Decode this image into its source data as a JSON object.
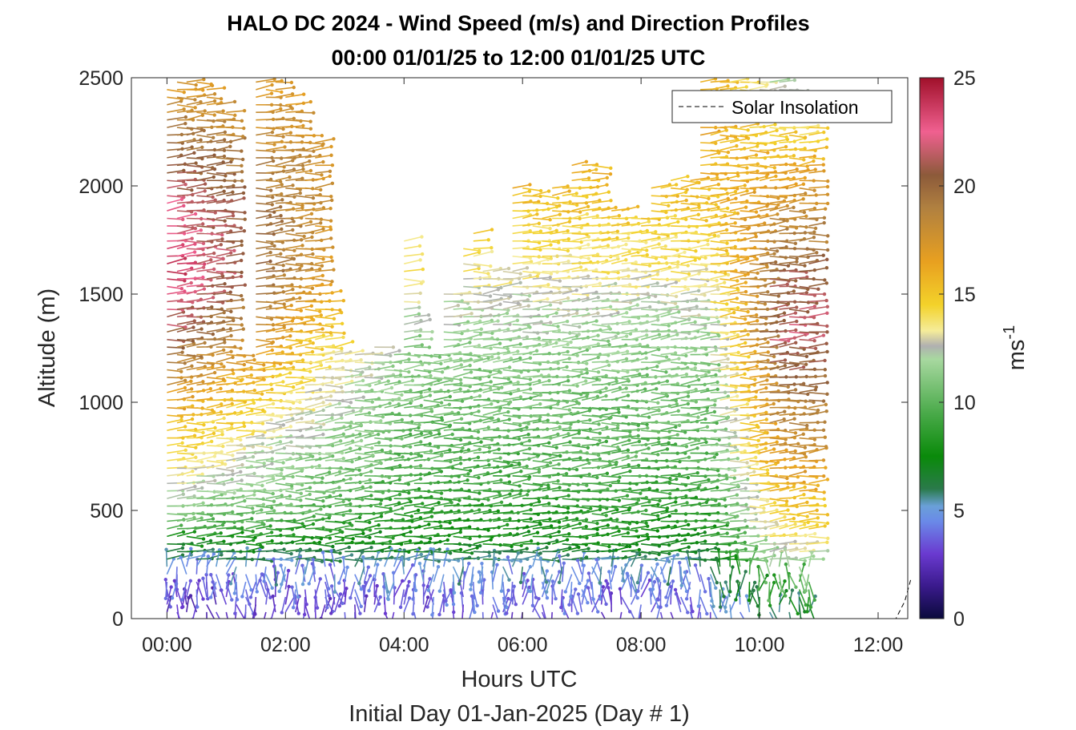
{
  "chart_data": {
    "type": "wind-barb-profile",
    "title": "HALO DC 2024 - Wind Speed (m/s) and Direction Profiles",
    "subtitle": "00:00 01/01/25 to 12:00 01/01/25  UTC",
    "xlabel": "Hours UTC",
    "xlabel2": "Initial Day 01-Jan-2025 (Day # 1)",
    "ylabel": "Altitude (m)",
    "x_unit": "hours",
    "xlim": [
      -0.6,
      12.5
    ],
    "ylim": [
      0,
      2500
    ],
    "xticks": [
      0,
      2,
      4,
      6,
      8,
      10,
      12
    ],
    "xtick_labels": [
      "00:00",
      "02:00",
      "04:00",
      "06:00",
      "08:00",
      "10:00",
      "12:00"
    ],
    "yticks": [
      0,
      500,
      1000,
      1500,
      2000,
      2500
    ],
    "ytick_labels": [
      "0",
      "500",
      "1000",
      "1500",
      "2000",
      "2500"
    ],
    "colorbar": {
      "label": "ms",
      "label_exponent": "-1",
      "range": [
        0,
        25
      ],
      "ticks": [
        0,
        5,
        10,
        15,
        20,
        25
      ],
      "tick_labels": [
        "0",
        "5",
        "10",
        "15",
        "20",
        "25"
      ],
      "stops": [
        {
          "v": 0,
          "c": "#0a0a3c"
        },
        {
          "v": 1.5,
          "c": "#3a1a8c"
        },
        {
          "v": 3,
          "c": "#6a3ad0"
        },
        {
          "v": 4.5,
          "c": "#6a8ae8"
        },
        {
          "v": 5.2,
          "c": "#6aa0d8"
        },
        {
          "v": 6,
          "c": "#2a7a4a"
        },
        {
          "v": 7.5,
          "c": "#0a8a0a"
        },
        {
          "v": 9.5,
          "c": "#4aaa4a"
        },
        {
          "v": 12,
          "c": "#a8d8a0"
        },
        {
          "v": 12.6,
          "c": "#b0b0b0"
        },
        {
          "v": 13.3,
          "c": "#f5ec9a"
        },
        {
          "v": 14.5,
          "c": "#f3d22a"
        },
        {
          "v": 16.5,
          "c": "#e8a020"
        },
        {
          "v": 19,
          "c": "#b08040"
        },
        {
          "v": 20.5,
          "c": "#8c5a3a"
        },
        {
          "v": 22.5,
          "c": "#f06090"
        },
        {
          "v": 25,
          "c": "#a0102a"
        }
      ]
    },
    "legend": {
      "entries": [
        "Solar Insolation"
      ],
      "placement": "top-right"
    },
    "profile_times": [
      0,
      0.17,
      0.33,
      0.5,
      0.67,
      0.83,
      1.0,
      1.17,
      1.33,
      1.5,
      1.67,
      1.83,
      2.0,
      2.17,
      2.33,
      2.5,
      2.67,
      2.83,
      3.0,
      3.17,
      3.33,
      3.5,
      3.67,
      3.83,
      4.0,
      4.17,
      4.33,
      4.5,
      4.67,
      4.83,
      5.0,
      5.17,
      5.33,
      5.5,
      5.67,
      5.83,
      6.0,
      6.17,
      6.33,
      6.5,
      6.67,
      6.83,
      7.0,
      7.17,
      7.33,
      7.5,
      7.67,
      7.83,
      8.0,
      8.17,
      8.33,
      8.5,
      8.67,
      8.83,
      9.0,
      9.17,
      9.33,
      9.5,
      9.67,
      9.83,
      10.0,
      10.17,
      10.33,
      10.5,
      10.67,
      10.83
    ],
    "profile_tops": [
      2450,
      2490,
      2490,
      2480,
      2450,
      2400,
      2350,
      1220,
      1210,
      2490,
      2490,
      2490,
      2420,
      2400,
      2260,
      2200,
      1530,
      1260,
      1250,
      1240,
      1250,
      1260,
      1250,
      1250,
      1760,
      1410,
      1250,
      1250,
      1500,
      1500,
      1730,
      1790,
      1620,
      1620,
      1620,
      2000,
      2000,
      1980,
      1960,
      2000,
      2000,
      2100,
      2100,
      2100,
      1890,
      1890,
      1890,
      1850,
      1850,
      2000,
      2000,
      2050,
      2050,
      2040,
      2500,
      2500,
      2500,
      2500,
      2500,
      2500,
      2500,
      2500,
      2480,
      2450,
      2400,
      2340
    ],
    "profile_bottoms": [
      30,
      30,
      30,
      30,
      30,
      30,
      30,
      30,
      30,
      30,
      30,
      30,
      30,
      30,
      30,
      30,
      30,
      30,
      30,
      30,
      30,
      30,
      30,
      30,
      30,
      30,
      30,
      30,
      30,
      30,
      30,
      30,
      30,
      30,
      30,
      30,
      30,
      30,
      30,
      30,
      30,
      30,
      30,
      30,
      30,
      30,
      30,
      30,
      30,
      30,
      30,
      30,
      30,
      30,
      30,
      30,
      30,
      30,
      30,
      30,
      30,
      30,
      30,
      30,
      30,
      30
    ],
    "range_gate_m": 35,
    "speed_profile": {
      "heights_m": [
        0,
        120,
        230,
        350,
        500,
        700,
        1000,
        1300,
        1600,
        2000,
        2500
      ],
      "speed_ms_early": [
        2.5,
        3.0,
        4.5,
        7.5,
        11.5,
        13.5,
        16.5,
        20.5,
        23.5,
        21.5,
        17
      ],
      "speed_ms_mid": [
        3.0,
        4.0,
        5.0,
        7.5,
        8.5,
        9.5,
        10.5,
        11.5,
        13.5,
        15.5,
        16.5
      ],
      "speed_ms_late": [
        5.0,
        8.0,
        11.5,
        13.5,
        15.0,
        17.0,
        19.0,
        21.5,
        20.5,
        17.0,
        12.0
      ]
    },
    "direction_description": "westerly to north-westerly aloft, variable near surface",
    "solar_insolation": {
      "x": [
        -0.6,
        12.3,
        12.45,
        12.55
      ],
      "y": [
        0,
        0,
        80,
        180
      ]
    }
  }
}
